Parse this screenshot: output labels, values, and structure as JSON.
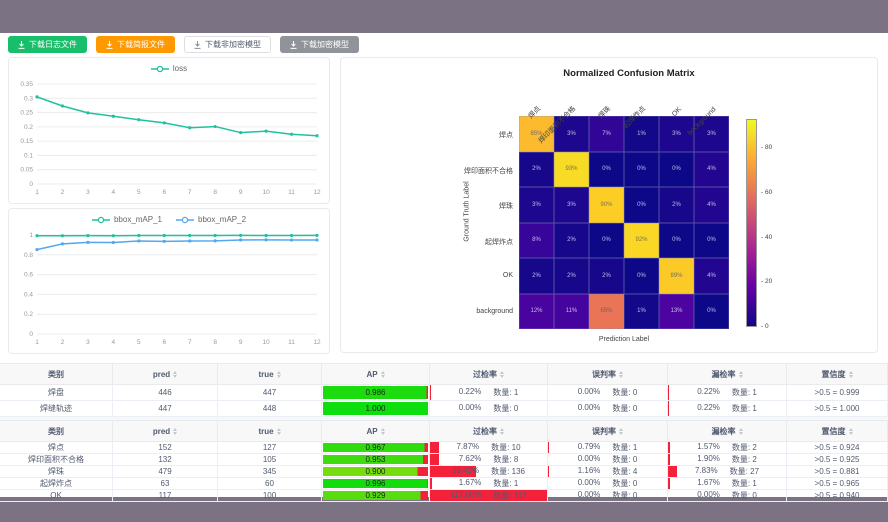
{
  "toolbar": {
    "buttons": [
      {
        "label": "下载日志文件",
        "variant": "success"
      },
      {
        "label": "下载简报文件",
        "variant": "warning"
      },
      {
        "label": "下载非加密模型",
        "variant": "default"
      },
      {
        "label": "下载加密模型",
        "variant": "disabled"
      }
    ]
  },
  "colors": {
    "teal": "#1fc2a0",
    "blue": "#54a8f0",
    "red": "#f4213a",
    "frame": "#7b7383"
  },
  "chart_data": [
    {
      "id": "loss",
      "type": "line",
      "title": "",
      "x": [
        1,
        2,
        3,
        4,
        5,
        6,
        7,
        8,
        9,
        10,
        11,
        12
      ],
      "series": [
        {
          "name": "loss",
          "color": "#1fc2a0",
          "values": [
            0.305,
            0.273,
            0.249,
            0.237,
            0.225,
            0.214,
            0.197,
            0.201,
            0.18,
            0.185,
            0.174,
            0.169
          ]
        }
      ],
      "ylim": [
        0,
        0.35
      ],
      "yticks": [
        0,
        0.05,
        0.1,
        0.15,
        0.2,
        0.25,
        0.3,
        0.35
      ],
      "ytick_labels": [
        "0",
        "0.05",
        "0.1",
        "0.15",
        "0.2",
        "0.25",
        "0.3",
        "0.35"
      ],
      "grid": true,
      "legend_position": "top"
    },
    {
      "id": "map",
      "type": "line",
      "title": "",
      "x": [
        1,
        2,
        3,
        4,
        5,
        6,
        7,
        8,
        9,
        10,
        11,
        12
      ],
      "series": [
        {
          "name": "bbox_mAP_1",
          "color": "#1fc2a0",
          "values": [
            0.993,
            0.993,
            0.994,
            0.993,
            0.995,
            0.995,
            0.995,
            0.995,
            0.996,
            0.995,
            0.995,
            0.996
          ]
        },
        {
          "name": "bbox_mAP_2",
          "color": "#54a8f0",
          "values": [
            0.852,
            0.91,
            0.926,
            0.924,
            0.94,
            0.936,
            0.94,
            0.941,
            0.95,
            0.951,
            0.949,
            0.95
          ]
        }
      ],
      "ylim": [
        0,
        1
      ],
      "yticks": [
        0,
        0.2,
        0.4,
        0.6,
        0.8,
        1
      ],
      "ytick_labels": [
        "0",
        "0.2",
        "0.4",
        "0.6",
        "0.8",
        "1"
      ],
      "grid": true,
      "legend_position": "top"
    },
    {
      "id": "confusion",
      "type": "heatmap",
      "title": "Normalized Confusion Matrix",
      "xlabel": "Prediction Label",
      "ylabel": "Ground Truth Label",
      "labels": [
        "焊点",
        "焊印面积不合格",
        "焊珠",
        "起焊炸点",
        "OK",
        "background"
      ],
      "matrix": [
        [
          85,
          3,
          7,
          1,
          3,
          3
        ],
        [
          2,
          93,
          0,
          0,
          0,
          4
        ],
        [
          3,
          3,
          90,
          0,
          2,
          4
        ],
        [
          8,
          2,
          0,
          92,
          0,
          0
        ],
        [
          2,
          2,
          2,
          0,
          89,
          4
        ],
        [
          12,
          11,
          65,
          1,
          13,
          0
        ]
      ],
      "unit": "%",
      "vmax": 93,
      "colorbar_ticks": [
        0,
        20,
        40,
        60,
        80
      ]
    }
  ],
  "tables": [
    {
      "headers": [
        {
          "label": "类别",
          "sortable": false
        },
        {
          "label": "pred",
          "sortable": true
        },
        {
          "label": "true",
          "sortable": true
        },
        {
          "label": "AP",
          "sortable": true
        },
        {
          "label": "过检率",
          "sortable": true
        },
        {
          "label": "误判率",
          "sortable": true
        },
        {
          "label": "漏检率",
          "sortable": true
        },
        {
          "label": "置信度",
          "sortable": true
        }
      ],
      "rows": [
        {
          "class": "焊盘",
          "pred": "446",
          "true": "447",
          "ap": 0.986,
          "ap_label": "0.986",
          "overkill": {
            "pct": 0.22,
            "pct_label": "0.22%",
            "count_label": "数量: 1"
          },
          "misjudge": {
            "pct": 0,
            "pct_label": "0.00%",
            "count_label": "数量: 0"
          },
          "miss": {
            "pct": 0.22,
            "pct_label": "0.22%",
            "count_label": "数量: 1"
          },
          "confidence": ">0.5 = 0.999"
        },
        {
          "class": "焊缝轨迹",
          "pred": "447",
          "true": "448",
          "ap": 1.0,
          "ap_label": "1.000",
          "overkill": {
            "pct": 0,
            "pct_label": "0.00%",
            "count_label": "数量: 0"
          },
          "misjudge": {
            "pct": 0,
            "pct_label": "0.00%",
            "count_label": "数量: 0"
          },
          "miss": {
            "pct": 0.22,
            "pct_label": "0.22%",
            "count_label": "数量: 1"
          },
          "confidence": ">0.5 = 1.000"
        }
      ]
    },
    {
      "headers": [
        {
          "label": "类别",
          "sortable": false
        },
        {
          "label": "pred",
          "sortable": true
        },
        {
          "label": "true",
          "sortable": true
        },
        {
          "label": "AP",
          "sortable": true
        },
        {
          "label": "过检率",
          "sortable": true
        },
        {
          "label": "误判率",
          "sortable": true
        },
        {
          "label": "漏检率",
          "sortable": true
        },
        {
          "label": "置信度",
          "sortable": true
        }
      ],
      "rows": [
        {
          "class": "焊点",
          "pred": "152",
          "true": "127",
          "ap": 0.967,
          "ap_label": "0.967",
          "overkill": {
            "pct": 7.87,
            "pct_label": "7.87%",
            "count_label": "数量: 10"
          },
          "misjudge": {
            "pct": 0.79,
            "pct_label": "0.79%",
            "count_label": "数量: 1"
          },
          "miss": {
            "pct": 1.57,
            "pct_label": "1.57%",
            "count_label": "数量: 2"
          },
          "confidence": ">0.5 = 0.924"
        },
        {
          "class": "焊印面积不合格",
          "pred": "132",
          "true": "105",
          "ap": 0.953,
          "ap_label": "0.953",
          "overkill": {
            "pct": 7.62,
            "pct_label": "7.62%",
            "count_label": "数量: 8"
          },
          "misjudge": {
            "pct": 0,
            "pct_label": "0.00%",
            "count_label": "数量: 0"
          },
          "miss": {
            "pct": 1.9,
            "pct_label": "1.90%",
            "count_label": "数量: 2"
          },
          "confidence": ">0.5 = 0.925"
        },
        {
          "class": "焊珠",
          "pred": "479",
          "true": "345",
          "ap": 0.9,
          "ap_label": "0.900",
          "overkill": {
            "pct": 39.42,
            "pct_label": "39.42%",
            "count_label": "数量: 136"
          },
          "misjudge": {
            "pct": 1.16,
            "pct_label": "1.16%",
            "count_label": "数量: 4"
          },
          "miss": {
            "pct": 7.83,
            "pct_label": "7.83%",
            "count_label": "数量: 27"
          },
          "confidence": ">0.5 = 0.881"
        },
        {
          "class": "起焊炸点",
          "pred": "63",
          "true": "60",
          "ap": 0.996,
          "ap_label": "0.996",
          "overkill": {
            "pct": 1.67,
            "pct_label": "1.67%",
            "count_label": "数量: 1"
          },
          "misjudge": {
            "pct": 0,
            "pct_label": "0.00%",
            "count_label": "数量: 0"
          },
          "miss": {
            "pct": 1.67,
            "pct_label": "1.67%",
            "count_label": "数量: 1"
          },
          "confidence": ">0.5 = 0.965"
        },
        {
          "class": "OK",
          "pred": "117",
          "true": "100",
          "ap": 0.929,
          "ap_label": "0.929",
          "overkill": {
            "pct": 117.0,
            "pct_label": "117.00%",
            "count_label": "数量: 117"
          },
          "misjudge": {
            "pct": 0,
            "pct_label": "0.00%",
            "count_label": "数量: 0"
          },
          "miss": {
            "pct": 0,
            "pct_label": "0.00%",
            "count_label": "数量: 0"
          },
          "confidence": ">0.5 = 0.940"
        }
      ]
    }
  ]
}
